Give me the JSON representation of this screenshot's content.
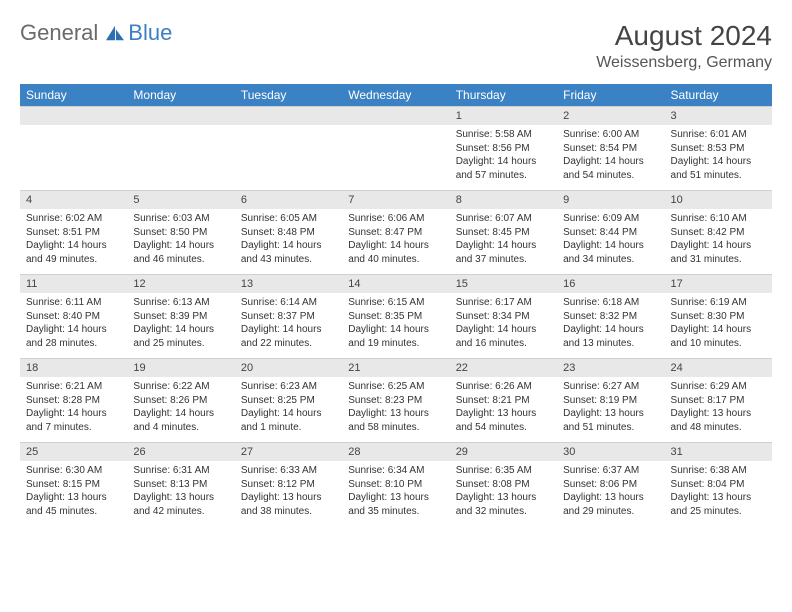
{
  "brand": {
    "part1": "General",
    "part2": "Blue"
  },
  "title": "August 2024",
  "location": "Weissensberg, Germany",
  "colors": {
    "header_bg": "#3b82c4",
    "header_text": "#ffffff",
    "daynum_bg": "#e8e8e8",
    "text": "#333333",
    "brand_gray": "#6a6a6a",
    "brand_blue": "#3b7fc4",
    "page_bg": "#ffffff"
  },
  "fonts": {
    "title_size": 28,
    "location_size": 16,
    "dayhead_size": 12,
    "daynum_size": 11,
    "detail_size": 10
  },
  "layout": {
    "columns": 7,
    "rows": 5,
    "col_width_pct": 14.28
  },
  "day_names": [
    "Sunday",
    "Monday",
    "Tuesday",
    "Wednesday",
    "Thursday",
    "Friday",
    "Saturday"
  ],
  "weeks": [
    {
      "nums": [
        "",
        "",
        "",
        "",
        "1",
        "2",
        "3"
      ],
      "details": [
        null,
        null,
        null,
        null,
        {
          "sunrise": "Sunrise: 5:58 AM",
          "sunset": "Sunset: 8:56 PM",
          "daylight": "Daylight: 14 hours and 57 minutes."
        },
        {
          "sunrise": "Sunrise: 6:00 AM",
          "sunset": "Sunset: 8:54 PM",
          "daylight": "Daylight: 14 hours and 54 minutes."
        },
        {
          "sunrise": "Sunrise: 6:01 AM",
          "sunset": "Sunset: 8:53 PM",
          "daylight": "Daylight: 14 hours and 51 minutes."
        }
      ]
    },
    {
      "nums": [
        "4",
        "5",
        "6",
        "7",
        "8",
        "9",
        "10"
      ],
      "details": [
        {
          "sunrise": "Sunrise: 6:02 AM",
          "sunset": "Sunset: 8:51 PM",
          "daylight": "Daylight: 14 hours and 49 minutes."
        },
        {
          "sunrise": "Sunrise: 6:03 AM",
          "sunset": "Sunset: 8:50 PM",
          "daylight": "Daylight: 14 hours and 46 minutes."
        },
        {
          "sunrise": "Sunrise: 6:05 AM",
          "sunset": "Sunset: 8:48 PM",
          "daylight": "Daylight: 14 hours and 43 minutes."
        },
        {
          "sunrise": "Sunrise: 6:06 AM",
          "sunset": "Sunset: 8:47 PM",
          "daylight": "Daylight: 14 hours and 40 minutes."
        },
        {
          "sunrise": "Sunrise: 6:07 AM",
          "sunset": "Sunset: 8:45 PM",
          "daylight": "Daylight: 14 hours and 37 minutes."
        },
        {
          "sunrise": "Sunrise: 6:09 AM",
          "sunset": "Sunset: 8:44 PM",
          "daylight": "Daylight: 14 hours and 34 minutes."
        },
        {
          "sunrise": "Sunrise: 6:10 AM",
          "sunset": "Sunset: 8:42 PM",
          "daylight": "Daylight: 14 hours and 31 minutes."
        }
      ]
    },
    {
      "nums": [
        "11",
        "12",
        "13",
        "14",
        "15",
        "16",
        "17"
      ],
      "details": [
        {
          "sunrise": "Sunrise: 6:11 AM",
          "sunset": "Sunset: 8:40 PM",
          "daylight": "Daylight: 14 hours and 28 minutes."
        },
        {
          "sunrise": "Sunrise: 6:13 AM",
          "sunset": "Sunset: 8:39 PM",
          "daylight": "Daylight: 14 hours and 25 minutes."
        },
        {
          "sunrise": "Sunrise: 6:14 AM",
          "sunset": "Sunset: 8:37 PM",
          "daylight": "Daylight: 14 hours and 22 minutes."
        },
        {
          "sunrise": "Sunrise: 6:15 AM",
          "sunset": "Sunset: 8:35 PM",
          "daylight": "Daylight: 14 hours and 19 minutes."
        },
        {
          "sunrise": "Sunrise: 6:17 AM",
          "sunset": "Sunset: 8:34 PM",
          "daylight": "Daylight: 14 hours and 16 minutes."
        },
        {
          "sunrise": "Sunrise: 6:18 AM",
          "sunset": "Sunset: 8:32 PM",
          "daylight": "Daylight: 14 hours and 13 minutes."
        },
        {
          "sunrise": "Sunrise: 6:19 AM",
          "sunset": "Sunset: 8:30 PM",
          "daylight": "Daylight: 14 hours and 10 minutes."
        }
      ]
    },
    {
      "nums": [
        "18",
        "19",
        "20",
        "21",
        "22",
        "23",
        "24"
      ],
      "details": [
        {
          "sunrise": "Sunrise: 6:21 AM",
          "sunset": "Sunset: 8:28 PM",
          "daylight": "Daylight: 14 hours and 7 minutes."
        },
        {
          "sunrise": "Sunrise: 6:22 AM",
          "sunset": "Sunset: 8:26 PM",
          "daylight": "Daylight: 14 hours and 4 minutes."
        },
        {
          "sunrise": "Sunrise: 6:23 AM",
          "sunset": "Sunset: 8:25 PM",
          "daylight": "Daylight: 14 hours and 1 minute."
        },
        {
          "sunrise": "Sunrise: 6:25 AM",
          "sunset": "Sunset: 8:23 PM",
          "daylight": "Daylight: 13 hours and 58 minutes."
        },
        {
          "sunrise": "Sunrise: 6:26 AM",
          "sunset": "Sunset: 8:21 PM",
          "daylight": "Daylight: 13 hours and 54 minutes."
        },
        {
          "sunrise": "Sunrise: 6:27 AM",
          "sunset": "Sunset: 8:19 PM",
          "daylight": "Daylight: 13 hours and 51 minutes."
        },
        {
          "sunrise": "Sunrise: 6:29 AM",
          "sunset": "Sunset: 8:17 PM",
          "daylight": "Daylight: 13 hours and 48 minutes."
        }
      ]
    },
    {
      "nums": [
        "25",
        "26",
        "27",
        "28",
        "29",
        "30",
        "31"
      ],
      "details": [
        {
          "sunrise": "Sunrise: 6:30 AM",
          "sunset": "Sunset: 8:15 PM",
          "daylight": "Daylight: 13 hours and 45 minutes."
        },
        {
          "sunrise": "Sunrise: 6:31 AM",
          "sunset": "Sunset: 8:13 PM",
          "daylight": "Daylight: 13 hours and 42 minutes."
        },
        {
          "sunrise": "Sunrise: 6:33 AM",
          "sunset": "Sunset: 8:12 PM",
          "daylight": "Daylight: 13 hours and 38 minutes."
        },
        {
          "sunrise": "Sunrise: 6:34 AM",
          "sunset": "Sunset: 8:10 PM",
          "daylight": "Daylight: 13 hours and 35 minutes."
        },
        {
          "sunrise": "Sunrise: 6:35 AM",
          "sunset": "Sunset: 8:08 PM",
          "daylight": "Daylight: 13 hours and 32 minutes."
        },
        {
          "sunrise": "Sunrise: 6:37 AM",
          "sunset": "Sunset: 8:06 PM",
          "daylight": "Daylight: 13 hours and 29 minutes."
        },
        {
          "sunrise": "Sunrise: 6:38 AM",
          "sunset": "Sunset: 8:04 PM",
          "daylight": "Daylight: 13 hours and 25 minutes."
        }
      ]
    }
  ]
}
